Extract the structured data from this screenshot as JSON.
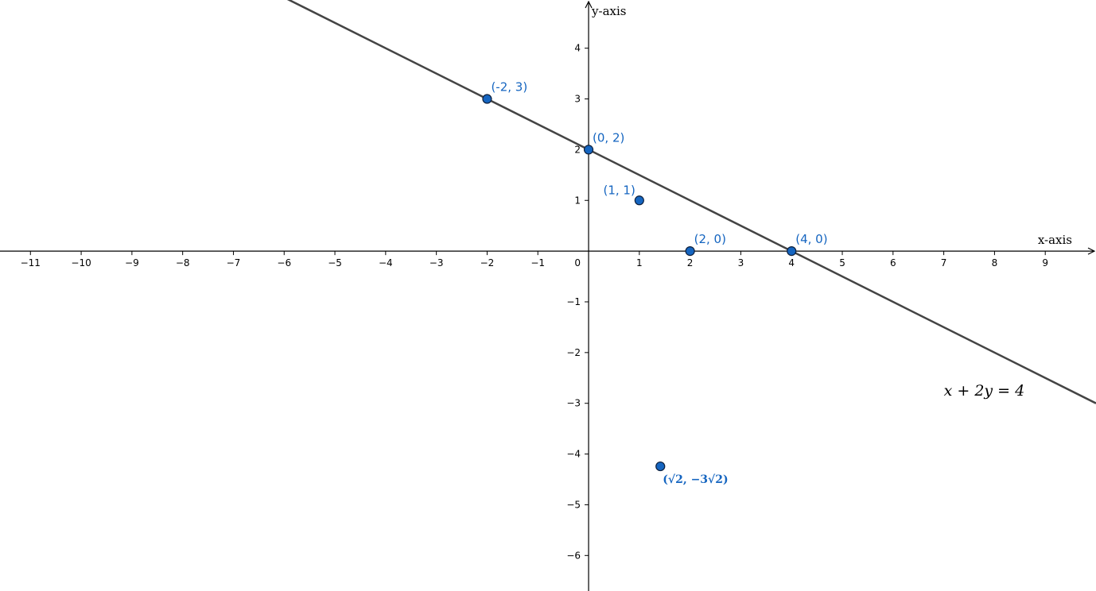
{
  "chart_data": {
    "type": "scatter",
    "title": "",
    "xlabel": "x-axis",
    "ylabel": "y-axis",
    "xlim": [
      -11.6,
      10.0
    ],
    "ylim": [
      -6.7,
      4.95
    ],
    "grid": false,
    "x_ticks": [
      {
        "value": -11,
        "label": "−11"
      },
      {
        "value": -10,
        "label": "−10"
      },
      {
        "value": -9,
        "label": "−9"
      },
      {
        "value": -8,
        "label": "−8"
      },
      {
        "value": -7,
        "label": "−7"
      },
      {
        "value": -6,
        "label": "−6"
      },
      {
        "value": -5,
        "label": "−5"
      },
      {
        "value": -4,
        "label": "−4"
      },
      {
        "value": -3,
        "label": "−3"
      },
      {
        "value": -2,
        "label": "−2"
      },
      {
        "value": -1,
        "label": "−1"
      },
      {
        "value": 1,
        "label": "1"
      },
      {
        "value": 2,
        "label": "2"
      },
      {
        "value": 3,
        "label": "3"
      },
      {
        "value": 4,
        "label": "4"
      },
      {
        "value": 5,
        "label": "5"
      },
      {
        "value": 6,
        "label": "6"
      },
      {
        "value": 7,
        "label": "7"
      },
      {
        "value": 8,
        "label": "8"
      },
      {
        "value": 9,
        "label": "9"
      }
    ],
    "y_ticks": [
      {
        "value": 4,
        "label": "4"
      },
      {
        "value": 3,
        "label": "3"
      },
      {
        "value": 2,
        "label": "2"
      },
      {
        "value": 1,
        "label": "1"
      },
      {
        "value": -1,
        "label": "−1"
      },
      {
        "value": -2,
        "label": "−2"
      },
      {
        "value": -3,
        "label": "−3"
      },
      {
        "value": -4,
        "label": "−4"
      },
      {
        "value": -5,
        "label": "−5"
      },
      {
        "value": -6,
        "label": "−6"
      }
    ],
    "origin_label": "0",
    "line": {
      "equation": "x + 2y = 4",
      "slope": -0.5,
      "intercept": 2,
      "color": "#444444"
    },
    "points": [
      {
        "x": -2,
        "y": 3,
        "label": "(-2, 3)",
        "label_pos": "above-right"
      },
      {
        "x": 0,
        "y": 2,
        "label": "(0, 2)",
        "label_pos": "above-right"
      },
      {
        "x": 1,
        "y": 1,
        "label": "(1, 1)",
        "label_pos": "above-left"
      },
      {
        "x": 2,
        "y": 0,
        "label": "(2, 0)",
        "label_pos": "above-right"
      },
      {
        "x": 4,
        "y": 0,
        "label": "(4, 0)",
        "label_pos": "above-right"
      },
      {
        "x": 1.4142,
        "y": -4.2426,
        "label": "(√2, −3√2)",
        "label_pos": "below-right",
        "label_style": "bold"
      }
    ],
    "colors": {
      "point_fill": "#1565C0",
      "point_stroke": "#0D1F3C",
      "label": "#1565C0",
      "axis": "#000000"
    }
  }
}
